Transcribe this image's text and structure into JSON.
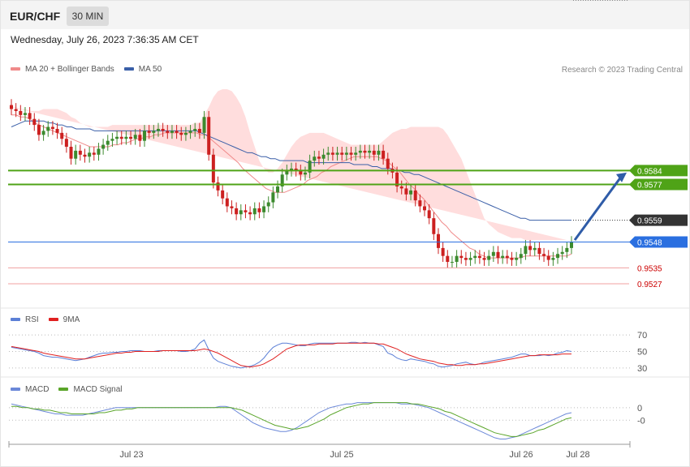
{
  "header": {
    "symbol": "EUR/CHF",
    "timeframe": "30 MIN",
    "timestamp": "Wednesday, July 26, 2023 7:36:35 AM CET"
  },
  "legend": {
    "ma20": "MA 20 + Bollinger Bands",
    "ma50": "MA 50",
    "credit": "Research © 2023 Trading Central"
  },
  "colors": {
    "bollinger_fill": "#ffdddd",
    "ma20": "#f08a8a",
    "ma50": "#3a5fa8",
    "candle_up": "#3c8a2e",
    "candle_down": "#cc2020",
    "resistance": "#4fa317",
    "current": "#333333",
    "support": "#2a6fe0",
    "lower_levels": "#f0a0a0",
    "lower_level_text": "#cc0000",
    "arrow": "#2f5ca8",
    "rsi": "#5b7fd6",
    "rsi_ma": "#e02020",
    "macd": "#6b88d8",
    "macd_signal": "#5aa52a"
  },
  "chart_data": [
    {
      "type": "candlestick",
      "name": "price",
      "ylim": [
        0.9518,
        0.9625
      ],
      "levels": [
        {
          "value": 0.9584,
          "label": "0.9584",
          "kind": "resistance"
        },
        {
          "value": 0.9577,
          "label": "0.9577",
          "kind": "resistance"
        },
        {
          "value": 0.9559,
          "label": "0.9559",
          "kind": "current"
        },
        {
          "value": 0.9548,
          "label": "0.9548",
          "kind": "support"
        },
        {
          "value": 0.9535,
          "label": "0.9535",
          "kind": "minor"
        },
        {
          "value": 0.9527,
          "label": "0.9527",
          "kind": "minor"
        }
      ],
      "closes": [
        0.9615,
        0.9614,
        0.9612,
        0.9613,
        0.961,
        0.9607,
        0.9602,
        0.9604,
        0.9606,
        0.9605,
        0.9603,
        0.96,
        0.9596,
        0.959,
        0.9594,
        0.9592,
        0.9591,
        0.9593,
        0.9592,
        0.9595,
        0.9597,
        0.9599,
        0.96,
        0.9601,
        0.96,
        0.9601,
        0.96,
        0.9602,
        0.9599,
        0.9604,
        0.9603,
        0.9604,
        0.9605,
        0.9604,
        0.9603,
        0.9604,
        0.9603,
        0.9602,
        0.9603,
        0.9604,
        0.9605,
        0.9603,
        0.9611,
        0.9592,
        0.9578,
        0.9574,
        0.957,
        0.9566,
        0.9565,
        0.9562,
        0.9564,
        0.9563,
        0.9562,
        0.9565,
        0.9563,
        0.9566,
        0.9568,
        0.9573,
        0.9576,
        0.9582,
        0.9584,
        0.9585,
        0.9584,
        0.9582,
        0.9583,
        0.9589,
        0.9591,
        0.959,
        0.9592,
        0.9593,
        0.9592,
        0.9593,
        0.9592,
        0.9593,
        0.9592,
        0.9593,
        0.9594,
        0.9593,
        0.9594,
        0.9592,
        0.9594,
        0.959,
        0.9585,
        0.9583,
        0.9576,
        0.9575,
        0.9572,
        0.9574,
        0.9569,
        0.9566,
        0.9564,
        0.956,
        0.9552,
        0.9545,
        0.9541,
        0.9538,
        0.9538,
        0.9541,
        0.954,
        0.9539,
        0.954,
        0.9541,
        0.954,
        0.9539,
        0.9541,
        0.9543,
        0.954,
        0.9541,
        0.954,
        0.9539,
        0.954,
        0.9542,
        0.9546,
        0.9544,
        0.9545,
        0.9542,
        0.9541,
        0.9539,
        0.954,
        0.9542,
        0.9543,
        0.9545,
        0.9548
      ],
      "ma20": [
        0.9612,
        0.9612,
        0.9611,
        0.9611,
        0.961,
        0.9608,
        0.9607,
        0.9606,
        0.9605,
        0.9604,
        0.9603,
        0.9602,
        0.9601,
        0.96,
        0.9599,
        0.9598,
        0.9597,
        0.9596,
        0.9596,
        0.9596,
        0.9596,
        0.9596,
        0.9597,
        0.9597,
        0.9598,
        0.9598,
        0.9599,
        0.96,
        0.96,
        0.9601,
        0.9601,
        0.9602,
        0.9602,
        0.9603,
        0.9603,
        0.9603,
        0.9603,
        0.9603,
        0.9603,
        0.9603,
        0.9603,
        0.9602,
        0.9602,
        0.96,
        0.9598,
        0.9596,
        0.9594,
        0.9592,
        0.959,
        0.9588,
        0.9585,
        0.9583,
        0.9581,
        0.9579,
        0.9577,
        0.9575,
        0.9574,
        0.9573,
        0.9573,
        0.9573,
        0.9574,
        0.9575,
        0.9576,
        0.9577,
        0.9579,
        0.958,
        0.9581,
        0.9583,
        0.9584,
        0.9586,
        0.9587,
        0.9588,
        0.9589,
        0.959,
        0.9591,
        0.9591,
        0.9591,
        0.9591,
        0.9591,
        0.9591,
        0.959,
        0.9589,
        0.9587,
        0.9585,
        0.9583,
        0.958,
        0.9577,
        0.9575,
        0.9572,
        0.957,
        0.9567,
        0.9564,
        0.9561,
        0.9558,
        0.9556,
        0.9553,
        0.9551,
        0.9549,
        0.9547,
        0.9545,
        0.9544,
        0.9542,
        0.9541,
        0.954,
        0.954,
        0.954,
        0.954,
        0.954,
        0.954,
        0.954,
        0.954,
        0.9541,
        0.9541,
        0.9541,
        0.9541,
        0.9541,
        0.9541,
        0.9541,
        0.9541,
        0.9541,
        0.9541,
        0.9542
      ],
      "bb_upper": [
        0.9616,
        0.9616,
        0.9615,
        0.9615,
        0.9614,
        0.9614,
        0.9614,
        0.9615,
        0.9615,
        0.9615,
        0.9615,
        0.9614,
        0.9613,
        0.9611,
        0.961,
        0.9608,
        0.9607,
        0.9606,
        0.9606,
        0.9606,
        0.9606,
        0.9606,
        0.9607,
        0.9607,
        0.9607,
        0.9607,
        0.9607,
        0.9607,
        0.9607,
        0.9607,
        0.9607,
        0.9607,
        0.9607,
        0.9607,
        0.9607,
        0.9607,
        0.9607,
        0.9607,
        0.9607,
        0.9607,
        0.9608,
        0.9608,
        0.9612,
        0.9616,
        0.9621,
        0.9624,
        0.9625,
        0.9625,
        0.9624,
        0.9621,
        0.9617,
        0.9611,
        0.9603,
        0.9596,
        0.9589,
        0.9585,
        0.9583,
        0.9583,
        0.9585,
        0.9588,
        0.9592,
        0.9596,
        0.9599,
        0.9601,
        0.9602,
        0.9603,
        0.9603,
        0.9603,
        0.9603,
        0.9602,
        0.9601,
        0.96,
        0.9599,
        0.9598,
        0.9597,
        0.9597,
        0.9597,
        0.9597,
        0.9597,
        0.9597,
        0.9597,
        0.9599,
        0.9601,
        0.9603,
        0.9604,
        0.9605,
        0.9605,
        0.9606,
        0.9606,
        0.9606,
        0.9606,
        0.9606,
        0.9606,
        0.9606,
        0.9605,
        0.9602,
        0.9598,
        0.9594,
        0.959,
        0.9584,
        0.9578,
        0.9572,
        0.9566,
        0.956,
        0.9557,
        0.9555,
        0.9553,
        0.9552,
        0.9551,
        0.955,
        0.955,
        0.955,
        0.9549,
        0.9549,
        0.9549,
        0.9549,
        0.9549,
        0.9549,
        0.9549,
        0.9549,
        0.9549,
        0.9549
      ],
      "bb_lower": [
        0.9608,
        0.9608,
        0.9607,
        0.9607,
        0.9606,
        0.9603,
        0.96,
        0.9597,
        0.9595,
        0.9593,
        0.9591,
        0.959,
        0.9589,
        0.9589,
        0.9588,
        0.9588,
        0.9587,
        0.9586,
        0.9586,
        0.9586,
        0.9586,
        0.9586,
        0.9587,
        0.9587,
        0.9589,
        0.9589,
        0.9591,
        0.9593,
        0.9593,
        0.9595,
        0.9595,
        0.9597,
        0.9597,
        0.9599,
        0.9599,
        0.9599,
        0.9599,
        0.9599,
        0.9599,
        0.9599,
        0.9598,
        0.9596,
        0.9592,
        0.9584,
        0.9575,
        0.9568,
        0.9563,
        0.9559,
        0.9556,
        0.9554,
        0.9553,
        0.9553,
        0.9554,
        0.9556,
        0.9558,
        0.956,
        0.9562,
        0.9563,
        0.9563,
        0.9564,
        0.9565,
        0.9567,
        0.957,
        0.9574,
        0.9577,
        0.9579,
        0.9581,
        0.9583,
        0.9584,
        0.9586,
        0.9587,
        0.9588,
        0.9589,
        0.959,
        0.9591,
        0.959,
        0.9589,
        0.9588,
        0.9586,
        0.9584,
        0.9582,
        0.9579,
        0.9576,
        0.9572,
        0.9568,
        0.9563,
        0.9557,
        0.9551,
        0.9546,
        0.9541,
        0.9536,
        0.9532,
        0.9529,
        0.9527,
        0.9526,
        0.9525,
        0.9524,
        0.9524,
        0.9524,
        0.9524,
        0.9525,
        0.9526,
        0.9527,
        0.9528,
        0.9529,
        0.953,
        0.9531,
        0.9532,
        0.9533,
        0.9533,
        0.9533,
        0.9533,
        0.9533,
        0.9533,
        0.9533,
        0.9533,
        0.9533,
        0.9533,
        0.9533,
        0.9533,
        0.9533,
        0.9533
      ],
      "ma50": [
        0.9606,
        0.9607,
        0.9608,
        0.9609,
        0.9609,
        0.9609,
        0.9609,
        0.9609,
        0.9608,
        0.9608,
        0.9607,
        0.9607,
        0.9606,
        0.9606,
        0.9605,
        0.9605,
        0.9605,
        0.9605,
        0.9604,
        0.9604,
        0.9604,
        0.9604,
        0.9604,
        0.9604,
        0.9604,
        0.9604,
        0.9604,
        0.9604,
        0.9604,
        0.9604,
        0.9604,
        0.9604,
        0.9604,
        0.9604,
        0.9604,
        0.9604,
        0.9604,
        0.9604,
        0.9604,
        0.9604,
        0.9604,
        0.9603,
        0.9602,
        0.9601,
        0.96,
        0.9599,
        0.9598,
        0.9597,
        0.9596,
        0.9595,
        0.9594,
        0.9593,
        0.9593,
        0.9592,
        0.9591,
        0.9591,
        0.959,
        0.959,
        0.9589,
        0.9589,
        0.9589,
        0.9589,
        0.9589,
        0.9589,
        0.9588,
        0.9588,
        0.9588,
        0.9588,
        0.9588,
        0.9588,
        0.9588,
        0.9588,
        0.9588,
        0.9588,
        0.9587,
        0.9587,
        0.9587,
        0.9587,
        0.9586,
        0.9586,
        0.9585,
        0.9585,
        0.9585,
        0.9584,
        0.9584,
        0.9583,
        0.9583,
        0.9582,
        0.9582,
        0.9581,
        0.958,
        0.9579,
        0.9578,
        0.9577,
        0.9576,
        0.9575,
        0.9574,
        0.9573,
        0.9572,
        0.9571,
        0.957,
        0.9569,
        0.9568,
        0.9567,
        0.9566,
        0.9565,
        0.9564,
        0.9563,
        0.9562,
        0.9561,
        0.956,
        0.956,
        0.9559,
        0.9559,
        0.9559,
        0.9559,
        0.9559,
        0.9559,
        0.9559,
        0.9559,
        0.9559,
        0.9559
      ],
      "projection": {
        "from": 0.9549,
        "to": 0.9583
      }
    },
    {
      "type": "line",
      "name": "RSI",
      "legend": [
        "RSI",
        "9MA"
      ],
      "ylim": [
        22,
        78
      ],
      "ticks": [
        "70",
        "50",
        "30"
      ],
      "tick_values": [
        70,
        50,
        30
      ],
      "rsi": [
        55,
        54,
        53,
        52,
        51,
        50,
        48,
        45,
        44,
        43,
        43,
        42,
        41,
        40,
        39,
        40,
        41,
        43,
        45,
        47,
        48,
        48,
        49,
        49,
        50,
        50,
        51,
        51,
        51,
        50,
        50,
        50,
        51,
        51,
        51,
        51,
        51,
        50,
        50,
        51,
        53,
        60,
        64,
        52,
        42,
        38,
        36,
        34,
        32,
        31,
        30,
        31,
        32,
        34,
        37,
        42,
        49,
        55,
        58,
        60,
        60,
        59,
        58,
        57,
        57,
        59,
        60,
        60,
        60,
        60,
        60,
        60,
        60,
        60,
        61,
        61,
        60,
        61,
        60,
        60,
        58,
        56,
        48,
        46,
        42,
        40,
        39,
        41,
        40,
        39,
        38,
        36,
        35,
        32,
        31,
        32,
        33,
        35,
        36,
        37,
        35,
        34,
        35,
        37,
        38,
        39,
        40,
        41,
        42,
        43,
        45,
        47,
        47,
        45,
        45,
        45,
        46,
        45,
        46,
        48,
        49,
        51,
        50
      ],
      "rsi_ma": [
        56,
        55,
        54,
        53,
        52,
        51,
        50,
        48,
        47,
        46,
        45,
        44,
        43,
        42,
        41,
        41,
        41,
        42,
        43,
        44,
        45,
        46,
        47,
        48,
        48,
        49,
        49,
        50,
        50,
        50,
        50,
        50,
        50,
        51,
        51,
        51,
        51,
        51,
        51,
        51,
        51,
        52,
        53,
        52,
        50,
        48,
        45,
        42,
        39,
        36,
        33,
        32,
        31,
        32,
        33,
        35,
        38,
        41,
        45,
        49,
        53,
        55,
        57,
        58,
        58,
        58,
        58,
        59,
        59,
        59,
        59,
        60,
        60,
        60,
        60,
        60,
        60,
        60,
        60,
        60,
        59,
        59,
        57,
        55,
        53,
        50,
        47,
        45,
        43,
        41,
        40,
        39,
        38,
        36,
        35,
        34,
        34,
        33,
        33,
        34,
        34,
        34,
        35,
        35,
        36,
        37,
        38,
        39,
        40,
        41,
        42,
        43,
        44,
        45,
        45,
        46,
        46,
        46,
        46,
        46,
        47,
        47,
        47
      ]
    },
    {
      "type": "line",
      "name": "MACD",
      "legend": [
        "MACD",
        "MACD Signal"
      ],
      "ylim": [
        -0.0026,
        0.0007
      ],
      "ticks": [
        "0",
        "-0"
      ],
      "tick_values": [
        0,
        -0.001
      ],
      "macd": [
        0.0003,
        0.0002,
        0.0001,
        0,
        -0.0001,
        -0.0002,
        -0.0003,
        -0.0004,
        -0.0005,
        -0.0005,
        -0.0006,
        -0.0006,
        -0.0006,
        -0.0006,
        -0.0005,
        -0.0004,
        -0.0003,
        -0.0002,
        -0.0001,
        0,
        0,
        0,
        0,
        0,
        0,
        0,
        0,
        0,
        0,
        0,
        0,
        0,
        0,
        0,
        0,
        0,
        0,
        0,
        0.0001,
        0.0001,
        0,
        -0.0003,
        -0.0006,
        -0.0009,
        -0.0012,
        -0.0014,
        -0.0016,
        -0.0017,
        -0.0018,
        -0.0019,
        -0.0019,
        -0.0018,
        -0.0016,
        -0.0013,
        -0.001,
        -0.0007,
        -0.0004,
        -0.0002,
        0,
        0.0001,
        0.0002,
        0.0003,
        0.0003,
        0.0004,
        0.0004,
        0.0004,
        0.0004,
        0.0004,
        0.0004,
        0.0004,
        0.0004,
        0.0003,
        0.0003,
        0.0003,
        0.0002,
        0.0001,
        0,
        -0.0002,
        -0.0004,
        -0.0006,
        -0.0008,
        -0.001,
        -0.0012,
        -0.0014,
        -0.0016,
        -0.0018,
        -0.002,
        -0.0022,
        -0.0024,
        -0.0025,
        -0.0025,
        -0.0024,
        -0.0023,
        -0.0021,
        -0.0019,
        -0.0017,
        -0.0015,
        -0.0013,
        -0.0011,
        -0.0009,
        -0.0007,
        -0.0005,
        -0.0004
      ],
      "signal": [
        0.0001,
        0.0001,
        0,
        0,
        -0.0001,
        -0.0001,
        -0.0002,
        -0.0002,
        -0.0003,
        -0.0004,
        -0.0004,
        -0.0005,
        -0.0005,
        -0.0005,
        -0.0005,
        -0.0005,
        -0.0004,
        -0.0004,
        -0.0003,
        -0.0002,
        -0.0002,
        -0.0001,
        -0.0001,
        0,
        0,
        0,
        0,
        0,
        0,
        0,
        0,
        0,
        0,
        0,
        0,
        0,
        0,
        0,
        0,
        0,
        0,
        -0.0001,
        -0.0002,
        -0.0004,
        -0.0006,
        -0.0008,
        -0.001,
        -0.0012,
        -0.0014,
        -0.0015,
        -0.0016,
        -0.0017,
        -0.0017,
        -0.0016,
        -0.0015,
        -0.0013,
        -0.0011,
        -0.0009,
        -0.0006,
        -0.0004,
        -0.0002,
        0,
        0.0001,
        0.0002,
        0.0003,
        0.0003,
        0.0004,
        0.0004,
        0.0004,
        0.0004,
        0.0004,
        0.0004,
        0.0004,
        0.0003,
        0.0003,
        0.0002,
        0.0001,
        0,
        -0.0001,
        -0.0003,
        -0.0004,
        -0.0006,
        -0.0008,
        -0.001,
        -0.0012,
        -0.0014,
        -0.0016,
        -0.0018,
        -0.002,
        -0.0021,
        -0.0022,
        -0.0023,
        -0.0023,
        -0.0022,
        -0.0021,
        -0.002,
        -0.0018,
        -0.0017,
        -0.0015,
        -0.0013,
        -0.0011,
        -0.0009,
        -0.0008
      ]
    }
  ],
  "x_axis": {
    "labels": [
      "Jul 23",
      "Jul 25",
      "Jul 26",
      "Jul 28"
    ]
  }
}
